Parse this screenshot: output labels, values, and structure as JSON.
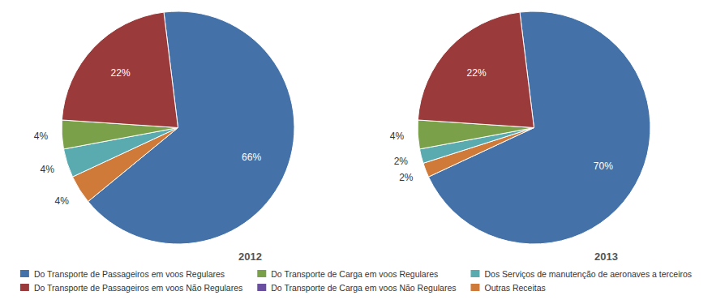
{
  "chart_data": [
    {
      "type": "pie",
      "title": "2012",
      "values": [
        66,
        4,
        4,
        4,
        22
      ],
      "value_labels": [
        "66%",
        "4%",
        "4%",
        "4%",
        "22%"
      ],
      "colors": [
        "#4472a8",
        "#d07a3a",
        "#5aabb0",
        "#7aa04a",
        "#9b3a3a"
      ],
      "data_labels": true
    },
    {
      "type": "pie",
      "title": "2013",
      "values": [
        70,
        2,
        2,
        4,
        22
      ],
      "value_labels": [
        "70%",
        "2%",
        "2%",
        "4%",
        "22%"
      ],
      "colors": [
        "#4472a8",
        "#d07a3a",
        "#5aabb0",
        "#7aa04a",
        "#9b3a3a"
      ],
      "data_labels": true
    },
    {
      "type": "legend",
      "series": [
        {
          "name": "Do Transporte de Passageiros em voos Regulares",
          "color": "#4472a8"
        },
        {
          "name": "Do Transporte de Passageiros em voos Não Regulares",
          "color": "#9b3a3a"
        },
        {
          "name": "Do Transporte de Carga em voos Regulares",
          "color": "#7aa04a"
        },
        {
          "name": "Do Transporte de Carga em voos Não Regulares",
          "color": "#6a4fa0"
        },
        {
          "name": "Dos Serviços de manutenção de aeronaves a terceiros",
          "color": "#5aabb0"
        },
        {
          "name": "Outras Receitas",
          "color": "#d07a3a"
        }
      ]
    }
  ]
}
